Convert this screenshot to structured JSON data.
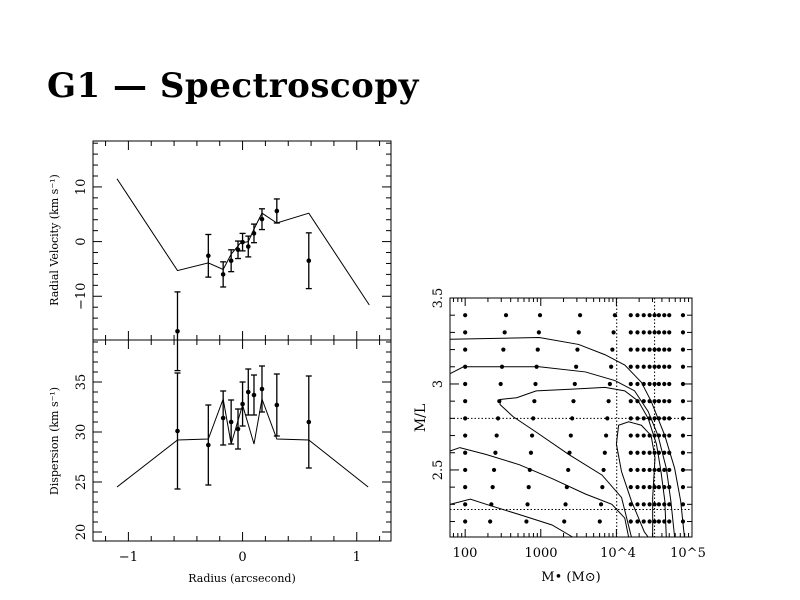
{
  "title": "G1 — Spectroscopy",
  "chart_data": [
    {
      "type": "line",
      "panel": "top-left",
      "ylabel": "Radial Velocity (km s⁻¹)",
      "xlim": [
        -1.31,
        1.3
      ],
      "ylim": [
        -18.0,
        18.4
      ],
      "xticks_major": [
        -1,
        0,
        1
      ],
      "xtick_minor_step": 0.2,
      "yticks_major": [
        -10,
        0,
        10
      ],
      "ytick_labels": [
        "−10",
        "0",
        "10"
      ],
      "ytick_minor_step": 2,
      "points": [
        {
          "x": -0.57,
          "y": -16.4,
          "err": 7.2
        },
        {
          "x": -0.3,
          "y": -2.6,
          "err": 3.9
        },
        {
          "x": -0.17,
          "y": -6.0,
          "err": 2.3
        },
        {
          "x": -0.1,
          "y": -3.5,
          "err": 2.0
        },
        {
          "x": -0.04,
          "y": -1.5,
          "err": 1.6
        },
        {
          "x": 0.0,
          "y": -0.1,
          "err": 1.6
        },
        {
          "x": 0.05,
          "y": -0.9,
          "err": 1.9
        },
        {
          "x": 0.1,
          "y": 1.5,
          "err": 1.7
        },
        {
          "x": 0.17,
          "y": 4.1,
          "err": 1.9
        },
        {
          "x": 0.3,
          "y": 5.6,
          "err": 2.2
        },
        {
          "x": 0.58,
          "y": -3.5,
          "err": 5.1
        }
      ],
      "model": [
        [
          -1.1,
          11.5
        ],
        [
          -0.57,
          -5.3
        ],
        [
          -0.3,
          -3.9
        ],
        [
          -0.17,
          -5.1
        ],
        [
          -0.1,
          -2.3
        ],
        [
          -0.02,
          -0.3
        ],
        [
          0.05,
          0.0
        ],
        [
          0.1,
          2.3
        ],
        [
          0.17,
          5.2
        ],
        [
          0.3,
          3.4
        ],
        [
          0.58,
          5.2
        ],
        [
          1.11,
          -11.6
        ]
      ]
    },
    {
      "type": "line",
      "panel": "bottom-left",
      "xlabel": "Radius (arcsecond)",
      "ylabel": "Dispersion (km s⁻¹)",
      "xlim": [
        -1.31,
        1.3
      ],
      "ylim": [
        19.1,
        39.2
      ],
      "xticks_major": [
        -1,
        0,
        1
      ],
      "xtick_labels": [
        "−1",
        "0",
        "1"
      ],
      "xtick_minor_step": 0.2,
      "yticks_major": [
        20,
        25,
        30,
        35
      ],
      "ytick_labels": [
        "20",
        "25",
        "30",
        "35"
      ],
      "ytick_minor_step": 1,
      "points": [
        {
          "x": -0.57,
          "y": 30.1,
          "err": 5.8
        },
        {
          "x": -0.3,
          "y": 28.7,
          "err": 4.0
        },
        {
          "x": -0.17,
          "y": 31.4,
          "err": 2.7
        },
        {
          "x": -0.1,
          "y": 31.0,
          "err": 2.2
        },
        {
          "x": -0.04,
          "y": 30.3,
          "err": 2.0
        },
        {
          "x": 0.0,
          "y": 32.8,
          "err": 2.2
        },
        {
          "x": 0.05,
          "y": 34.0,
          "err": 2.3
        },
        {
          "x": 0.1,
          "y": 33.7,
          "err": 2.0
        },
        {
          "x": 0.17,
          "y": 34.3,
          "err": 2.3
        },
        {
          "x": 0.3,
          "y": 32.7,
          "err": 3.1
        },
        {
          "x": 0.58,
          "y": 31.0,
          "err": 4.6
        }
      ],
      "model": [
        [
          -1.1,
          24.5
        ],
        [
          -0.57,
          29.2
        ],
        [
          -0.3,
          29.3
        ],
        [
          -0.17,
          33.3
        ],
        [
          -0.1,
          28.8
        ],
        [
          0.0,
          32.7
        ],
        [
          0.1,
          28.8
        ],
        [
          0.17,
          33.3
        ],
        [
          0.3,
          29.3
        ],
        [
          0.58,
          29.2
        ],
        [
          1.1,
          24.5
        ]
      ]
    },
    {
      "type": "scatter",
      "panel": "right",
      "xlabel": "M• (M⊙)",
      "ylabel": "M/L",
      "xscale": "log",
      "xlim": [
        63,
        100000
      ],
      "ylim": [
        2.11,
        3.5
      ],
      "xticks_major": [
        100,
        1000,
        10000,
        100000
      ],
      "xtick_labels": [
        "100",
        "1000",
        "10^4",
        "10^5"
      ],
      "yticks_major": [
        2.5,
        3.0,
        3.5
      ],
      "ytick_labels": [
        "2.5",
        "3",
        "3.5"
      ],
      "ytick_minor_step": 0.1,
      "grid_rows": [
        {
          "ml": 3.4,
          "m": [
            100,
            347,
            977,
            3311,
            9550
          ]
        },
        {
          "ml": 3.3,
          "m": [
            100,
            333,
            944,
            3180,
            9190
          ]
        },
        {
          "ml": 3.2,
          "m": [
            100,
            320,
            912,
            3055,
            8850
          ]
        },
        {
          "ml": 3.1,
          "m": [
            100,
            307,
            881,
            2934,
            8520
          ]
        },
        {
          "ml": 3.0,
          "m": [
            100,
            295,
            851,
            2818,
            8200
          ]
        },
        {
          "ml": 2.9,
          "m": [
            100,
            283,
            822,
            2707,
            7890
          ]
        },
        {
          "ml": 2.8,
          "m": [
            100,
            272,
            794,
            2600,
            7590
          ]
        },
        {
          "ml": 2.7,
          "m": [
            100,
            261,
            767,
            2497,
            7310
          ]
        },
        {
          "ml": 2.6,
          "m": [
            100,
            251,
            741,
            2399,
            7030
          ]
        },
        {
          "ml": 2.5,
          "m": [
            100,
            241,
            716,
            2304,
            6770
          ]
        },
        {
          "ml": 2.4,
          "m": [
            100,
            231,
            692,
            2213,
            6520
          ]
        },
        {
          "ml": 2.3,
          "m": [
            100,
            222,
            668,
            2125,
            6270
          ]
        },
        {
          "ml": 2.2,
          "m": [
            100,
            214,
            646,
            2042,
            6030
          ]
        }
      ],
      "grid_dense_m": [
        15500,
        19000,
        23000,
        27500,
        32000,
        36500,
        43000,
        50000,
        76000
      ],
      "contours": [
        [
          [
            63,
            3.26
          ],
          [
            955,
            3.27
          ],
          [
            3160,
            3.23
          ],
          [
            7080,
            3.17
          ],
          [
            12900,
            3.11
          ],
          [
            21400,
            3.01
          ],
          [
            28800,
            2.9
          ],
          [
            43700,
            2.7
          ],
          [
            58900,
            2.51
          ],
          [
            70800,
            2.32
          ],
          [
            79400,
            2.11
          ]
        ],
        [
          [
            63,
            3.06
          ],
          [
            95,
            3.1
          ],
          [
            955,
            3.1
          ],
          [
            3890,
            3.07
          ],
          [
            9550,
            3.02
          ],
          [
            17400,
            2.96
          ],
          [
            26300,
            2.84
          ],
          [
            35500,
            2.7
          ],
          [
            45700,
            2.51
          ],
          [
            52500,
            2.32
          ],
          [
            58900,
            2.11
          ]
        ],
        [
          [
            15800,
            2.11
          ],
          [
            11700,
            2.34
          ],
          [
            6460,
            2.47
          ],
          [
            2340,
            2.59
          ],
          [
            870,
            2.72
          ],
          [
            430,
            2.81
          ],
          [
            290,
            2.88
          ],
          [
            290,
            2.91
          ],
          [
            480,
            2.92
          ],
          [
            870,
            2.96
          ],
          [
            2630,
            2.97
          ],
          [
            7080,
            2.98
          ],
          [
            12900,
            2.96
          ],
          [
            19500,
            2.9
          ],
          [
            26300,
            2.8
          ],
          [
            33900,
            2.65
          ],
          [
            38900,
            2.49
          ],
          [
            43700,
            2.32
          ],
          [
            45700,
            2.11
          ]
        ],
        [
          [
            63,
            2.61
          ],
          [
            85,
            2.63
          ],
          [
            190,
            2.59
          ],
          [
            525,
            2.53
          ],
          [
            1410,
            2.45
          ],
          [
            3890,
            2.36
          ],
          [
            8710,
            2.3
          ],
          [
            12900,
            2.22
          ],
          [
            14500,
            2.11
          ]
        ],
        [
          [
            63,
            2.3
          ],
          [
            117,
            2.33
          ],
          [
            190,
            2.3
          ],
          [
            525,
            2.24
          ],
          [
            1410,
            2.18
          ],
          [
            2630,
            2.11
          ]
        ],
        [
          [
            26300,
            2.11
          ],
          [
            23400,
            2.14
          ],
          [
            15800,
            2.32
          ],
          [
            11700,
            2.49
          ],
          [
            10000,
            2.65
          ],
          [
            10700,
            2.76
          ],
          [
            14500,
            2.78
          ],
          [
            21400,
            2.76
          ],
          [
            28800,
            2.7
          ],
          [
            32400,
            2.57
          ],
          [
            30200,
            2.34
          ],
          [
            30200,
            2.11
          ]
        ]
      ],
      "reference_lines": {
        "m": [
          10100,
          32000
        ],
        "ml": [
          2.8,
          2.27
        ]
      }
    }
  ]
}
